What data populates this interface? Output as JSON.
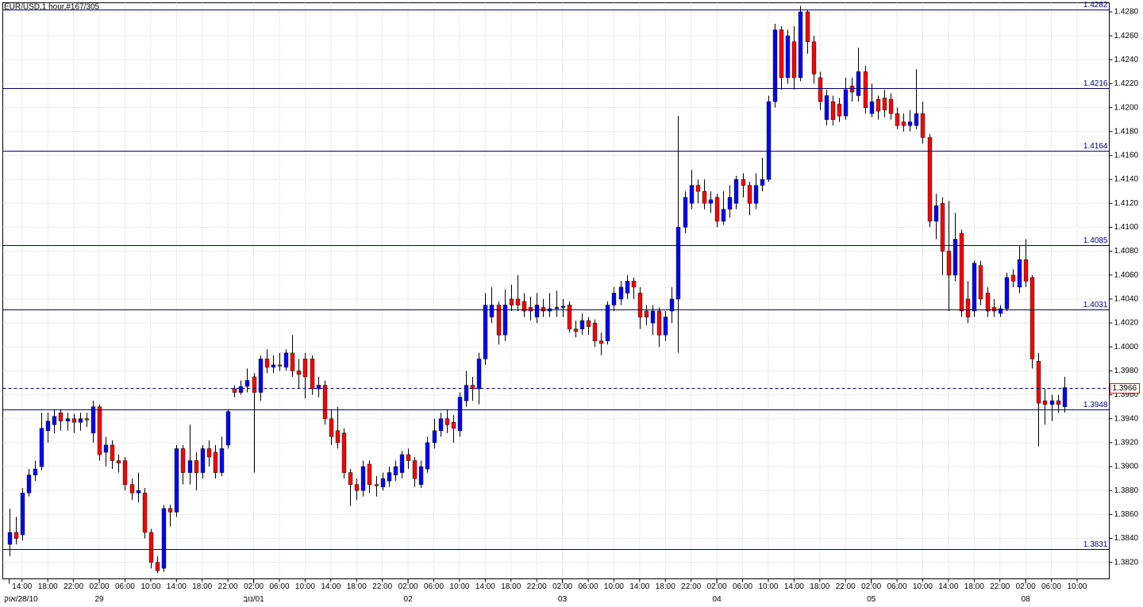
{
  "chart_data": {
    "type": "candlestick",
    "title": "EUR/USD,1 hour,#167/305",
    "up_color": "#0000ff",
    "down_color": "#ff0000",
    "level_color": "#000080",
    "grid": true,
    "ylim": [
      1.38062,
      1.42876
    ],
    "xlim": [
      -1,
      171
    ],
    "yticks": [
      {
        "value": 1.382,
        "label": "1.3820"
      },
      {
        "value": 1.384,
        "label": "1.3840"
      },
      {
        "value": 1.386,
        "label": "1.3860"
      },
      {
        "value": 1.388,
        "label": "1.3880"
      },
      {
        "value": 1.39,
        "label": "1.3900"
      },
      {
        "value": 1.392,
        "label": "1.3920"
      },
      {
        "value": 1.394,
        "label": "1.3940"
      },
      {
        "value": 1.396,
        "label": "1.3960"
      },
      {
        "value": 1.398,
        "label": "1.3980"
      },
      {
        "value": 1.4,
        "label": "1.4000"
      },
      {
        "value": 1.402,
        "label": "1.4020"
      },
      {
        "value": 1.404,
        "label": "1.4040"
      },
      {
        "value": 1.406,
        "label": "1.4060"
      },
      {
        "value": 1.408,
        "label": "1.4080"
      },
      {
        "value": 1.41,
        "label": "1.4100"
      },
      {
        "value": 1.412,
        "label": "1.4120"
      },
      {
        "value": 1.414,
        "label": "1.4140"
      },
      {
        "value": 1.416,
        "label": "1.4160"
      },
      {
        "value": 1.418,
        "label": "1.4180"
      },
      {
        "value": 1.42,
        "label": "1.4200"
      },
      {
        "value": 1.422,
        "label": "1.4220"
      },
      {
        "value": 1.424,
        "label": "1.4240"
      },
      {
        "value": 1.426,
        "label": "1.4260"
      },
      {
        "value": 1.428,
        "label": "1.4280"
      }
    ],
    "xticks": [
      {
        "value": 2,
        "label": "14:00"
      },
      {
        "value": 6,
        "label": "18:00"
      },
      {
        "value": 10,
        "label": "22:00"
      },
      {
        "value": 14,
        "label": "02:00"
      },
      {
        "value": 18,
        "label": "06:00"
      },
      {
        "value": 22,
        "label": "10:00"
      },
      {
        "value": 26,
        "label": "14:00"
      },
      {
        "value": 30,
        "label": "18:00"
      },
      {
        "value": 34,
        "label": "22:00"
      },
      {
        "value": 38,
        "label": "02:00"
      },
      {
        "value": 42,
        "label": "06:00"
      },
      {
        "value": 46,
        "label": "10:00"
      },
      {
        "value": 50,
        "label": "14:00"
      },
      {
        "value": 54,
        "label": "18:00"
      },
      {
        "value": 58,
        "label": "22:00"
      },
      {
        "value": 62,
        "label": "02:00"
      },
      {
        "value": 66,
        "label": "06:00"
      },
      {
        "value": 70,
        "label": "10:00"
      },
      {
        "value": 74,
        "label": "14:00"
      },
      {
        "value": 78,
        "label": "18:00"
      },
      {
        "value": 82,
        "label": "22:00"
      },
      {
        "value": 86,
        "label": "02:00"
      },
      {
        "value": 90,
        "label": "06:00"
      },
      {
        "value": 94,
        "label": "10:00"
      },
      {
        "value": 98,
        "label": "14:00"
      },
      {
        "value": 102,
        "label": "18:00"
      },
      {
        "value": 106,
        "label": "22:00"
      },
      {
        "value": 110,
        "label": "02:00"
      },
      {
        "value": 114,
        "label": "06:00"
      },
      {
        "value": 118,
        "label": "10:00"
      },
      {
        "value": 122,
        "label": "14:00"
      },
      {
        "value": 126,
        "label": "18:00"
      },
      {
        "value": 130,
        "label": "22:00"
      },
      {
        "value": 134,
        "label": "02:00"
      },
      {
        "value": 138,
        "label": "06:00"
      },
      {
        "value": 142,
        "label": "10:00"
      },
      {
        "value": 146,
        "label": "14:00"
      },
      {
        "value": 150,
        "label": "18:00"
      },
      {
        "value": 154,
        "label": "22:00"
      },
      {
        "value": 158,
        "label": "02:00"
      },
      {
        "value": 162,
        "label": "06:00"
      },
      {
        "value": 166,
        "label": "10:00"
      }
    ],
    "dates": [
      {
        "value": 0,
        "label": "28/10/אוק"
      },
      {
        "value": 14,
        "label": "29"
      },
      {
        "value": 38,
        "label": "01/נוב"
      },
      {
        "value": 62,
        "label": "02"
      },
      {
        "value": 86,
        "label": "03"
      },
      {
        "value": 110,
        "label": "04"
      },
      {
        "value": 134,
        "label": "05"
      },
      {
        "value": 158,
        "label": "08"
      }
    ],
    "levels": [
      1.4282,
      1.4216,
      1.4164,
      1.4085,
      1.4031,
      1.3948,
      1.3831
    ],
    "current_price": 1.3966,
    "ohlc": [
      [
        1.3835,
        1.3865,
        1.3825,
        1.3845
      ],
      [
        1.3845,
        1.3858,
        1.3835,
        1.384
      ],
      [
        1.3843,
        1.3882,
        1.3838,
        1.3878
      ],
      [
        1.3878,
        1.3898,
        1.3875,
        1.3893
      ],
      [
        1.3893,
        1.3905,
        1.3888,
        1.3898
      ],
      [
        1.39,
        1.3945,
        1.3897,
        1.3932
      ],
      [
        1.393,
        1.3945,
        1.392,
        1.3938
      ],
      [
        1.3935,
        1.3948,
        1.3928,
        1.3942
      ],
      [
        1.3945,
        1.3948,
        1.393,
        1.3938
      ],
      [
        1.3938,
        1.3945,
        1.393,
        1.394
      ],
      [
        1.394,
        1.3944,
        1.3928,
        1.3937
      ],
      [
        1.3937,
        1.3945,
        1.393,
        1.394
      ],
      [
        1.394,
        1.3945,
        1.3933,
        1.3939
      ],
      [
        1.3928,
        1.3955,
        1.392,
        1.395
      ],
      [
        1.395,
        1.3952,
        1.3905,
        1.391
      ],
      [
        1.3912,
        1.3925,
        1.39,
        1.3918
      ],
      [
        1.3918,
        1.3922,
        1.3898,
        1.3905
      ],
      [
        1.3905,
        1.391,
        1.3895,
        1.3903
      ],
      [
        1.3905,
        1.3908,
        1.388,
        1.3885
      ],
      [
        1.3885,
        1.389,
        1.3872,
        1.3878
      ],
      [
        1.3878,
        1.3895,
        1.387,
        1.388
      ],
      [
        1.3878,
        1.3882,
        1.384,
        1.3845
      ],
      [
        1.3845,
        1.3848,
        1.3815,
        1.382
      ],
      [
        1.382,
        1.3825,
        1.3811,
        1.3813
      ],
      [
        1.3815,
        1.3868,
        1.3812,
        1.3865
      ],
      [
        1.3865,
        1.3868,
        1.385,
        1.3862
      ],
      [
        1.3862,
        1.3918,
        1.3858,
        1.3915
      ],
      [
        1.3915,
        1.3918,
        1.3885,
        1.3895
      ],
      [
        1.3895,
        1.3935,
        1.3885,
        1.3905
      ],
      [
        1.3905,
        1.3912,
        1.388,
        1.3895
      ],
      [
        1.3895,
        1.3918,
        1.389,
        1.3915
      ],
      [
        1.3915,
        1.3922,
        1.39,
        1.3908
      ],
      [
        1.3912,
        1.3918,
        1.389,
        1.3895
      ],
      [
        1.3895,
        1.3925,
        1.3892,
        1.3915
      ],
      [
        1.3918,
        1.3948,
        1.3915,
        1.3946
      ],
      [
        1.3965,
        1.3968,
        1.3958,
        1.3962
      ],
      [
        1.3962,
        1.3972,
        1.396,
        1.3967
      ],
      [
        1.3967,
        1.3982,
        1.3962,
        1.3972
      ],
      [
        1.3975,
        1.3978,
        1.3895,
        1.3962
      ],
      [
        1.3962,
        1.3993,
        1.3955,
        1.399
      ],
      [
        1.399,
        1.3998,
        1.3978,
        1.3983
      ],
      [
        1.3983,
        1.3993,
        1.3978,
        1.3985
      ],
      [
        1.3985,
        1.3995,
        1.398,
        1.3984
      ],
      [
        1.3983,
        1.3998,
        1.398,
        1.3995
      ],
      [
        1.3995,
        1.401,
        1.3975,
        1.398
      ],
      [
        1.398,
        1.399,
        1.3965,
        1.3977
      ],
      [
        1.399,
        1.3995,
        1.3957,
        1.3975
      ],
      [
        1.399,
        1.3993,
        1.396,
        1.3965
      ],
      [
        1.3965,
        1.3975,
        1.3958,
        1.3968
      ],
      [
        1.3968,
        1.3972,
        1.3935,
        1.394
      ],
      [
        1.394,
        1.3948,
        1.3918,
        1.3925
      ],
      [
        1.393,
        1.395,
        1.3915,
        1.392
      ],
      [
        1.3928,
        1.3932,
        1.389,
        1.3895
      ],
      [
        1.3895,
        1.3898,
        1.3867,
        1.3885
      ],
      [
        1.3885,
        1.389,
        1.3872,
        1.388
      ],
      [
        1.388,
        1.3905,
        1.3875,
        1.39
      ],
      [
        1.3902,
        1.3905,
        1.3878,
        1.3885
      ],
      [
        1.3885,
        1.3892,
        1.3875,
        1.3884
      ],
      [
        1.3883,
        1.3895,
        1.388,
        1.389
      ],
      [
        1.3888,
        1.39,
        1.3883,
        1.3895
      ],
      [
        1.3893,
        1.3905,
        1.3888,
        1.39
      ],
      [
        1.3895,
        1.3913,
        1.389,
        1.391
      ],
      [
        1.391,
        1.3915,
        1.3898,
        1.3905
      ],
      [
        1.3905,
        1.3908,
        1.3883,
        1.389
      ],
      [
        1.3885,
        1.3905,
        1.3882,
        1.39
      ],
      [
        1.3898,
        1.3925,
        1.3895,
        1.392
      ],
      [
        1.392,
        1.394,
        1.3915,
        1.393
      ],
      [
        1.393,
        1.3945,
        1.3925,
        1.394
      ],
      [
        1.394,
        1.3948,
        1.3928,
        1.3935
      ],
      [
        1.3937,
        1.3943,
        1.392,
        1.3932
      ],
      [
        1.393,
        1.3962,
        1.3925,
        1.3958
      ],
      [
        1.3955,
        1.398,
        1.395,
        1.3968
      ],
      [
        1.3968,
        1.3975,
        1.3955,
        1.3965
      ],
      [
        1.3965,
        1.3995,
        1.3952,
        1.399
      ],
      [
        1.399,
        1.4045,
        1.3985,
        1.4035
      ],
      [
        1.4025,
        1.405,
        1.402,
        1.4035
      ],
      [
        1.4035,
        1.4038,
        1.4002,
        1.401
      ],
      [
        1.401,
        1.4048,
        1.4005,
        1.4035
      ],
      [
        1.404,
        1.4052,
        1.403,
        1.4035
      ],
      [
        1.404,
        1.406,
        1.403,
        1.4035
      ],
      [
        1.4038,
        1.4045,
        1.4025,
        1.403
      ],
      [
        1.4033,
        1.4042,
        1.4022,
        1.403
      ],
      [
        1.4025,
        1.4045,
        1.402,
        1.4035
      ],
      [
        1.4033,
        1.404,
        1.4025,
        1.403
      ],
      [
        1.403,
        1.4045,
        1.4025,
        1.4032
      ],
      [
        1.4032,
        1.4047,
        1.4025,
        1.4033
      ],
      [
        1.4033,
        1.404,
        1.4025,
        1.4034
      ],
      [
        1.4035,
        1.4038,
        1.4012,
        1.4015
      ],
      [
        1.4015,
        1.4022,
        1.4008,
        1.4013
      ],
      [
        1.4015,
        1.4028,
        1.401,
        1.4022
      ],
      [
        1.4022,
        1.4025,
        1.401,
        1.4017
      ],
      [
        1.402,
        1.4023,
        1.4,
        1.4005
      ],
      [
        1.4005,
        1.4012,
        1.3993,
        1.4003
      ],
      [
        1.4005,
        1.4038,
        1.4002,
        1.4035
      ],
      [
        1.4035,
        1.405,
        1.403,
        1.4045
      ],
      [
        1.404,
        1.4055,
        1.4035,
        1.405
      ],
      [
        1.4045,
        1.406,
        1.404,
        1.4055
      ],
      [
        1.4055,
        1.4058,
        1.404,
        1.405
      ],
      [
        1.4045,
        1.405,
        1.4015,
        1.4025
      ],
      [
        1.403,
        1.4035,
        1.4018,
        1.4025
      ],
      [
        1.402,
        1.4035,
        1.401,
        1.403
      ],
      [
        1.403,
        1.4033,
        1.4,
        1.401
      ],
      [
        1.401,
        1.403,
        1.4005,
        1.4025
      ],
      [
        1.403,
        1.405,
        1.402,
        1.404
      ],
      [
        1.404,
        1.4193,
        1.3995,
        1.41
      ],
      [
        1.41,
        1.413,
        1.4095,
        1.4125
      ],
      [
        1.412,
        1.4148,
        1.4115,
        1.4135
      ],
      [
        1.4135,
        1.414,
        1.412,
        1.413
      ],
      [
        1.413,
        1.414,
        1.4115,
        1.412
      ],
      [
        1.412,
        1.413,
        1.4112,
        1.4123
      ],
      [
        1.4125,
        1.4128,
        1.41,
        1.4105
      ],
      [
        1.4105,
        1.413,
        1.4102,
        1.4115
      ],
      [
        1.4115,
        1.4135,
        1.4108,
        1.4125
      ],
      [
        1.412,
        1.4143,
        1.4115,
        1.414
      ],
      [
        1.414,
        1.4145,
        1.4125,
        1.4135
      ],
      [
        1.4135,
        1.4138,
        1.411,
        1.412
      ],
      [
        1.412,
        1.4145,
        1.4115,
        1.4135
      ],
      [
        1.4135,
        1.4158,
        1.413,
        1.414
      ],
      [
        1.414,
        1.421,
        1.4138,
        1.4205
      ],
      [
        1.4205,
        1.427,
        1.42,
        1.4265
      ],
      [
        1.4265,
        1.4268,
        1.4215,
        1.4225
      ],
      [
        1.4225,
        1.4265,
        1.422,
        1.426
      ],
      [
        1.4255,
        1.4268,
        1.4215,
        1.4225
      ],
      [
        1.4225,
        1.4285,
        1.4222,
        1.428
      ],
      [
        1.428,
        1.4282,
        1.4245,
        1.4255
      ],
      [
        1.4255,
        1.426,
        1.422,
        1.4228
      ],
      [
        1.4225,
        1.423,
        1.4198,
        1.4205
      ],
      [
        1.419,
        1.4215,
        1.4185,
        1.421
      ],
      [
        1.4205,
        1.421,
        1.4185,
        1.419
      ],
      [
        1.4203,
        1.4208,
        1.4188,
        1.4193
      ],
      [
        1.4193,
        1.4225,
        1.419,
        1.4215
      ],
      [
        1.4218,
        1.4225,
        1.4205,
        1.4213
      ],
      [
        1.421,
        1.425,
        1.4205,
        1.423
      ],
      [
        1.423,
        1.4235,
        1.4195,
        1.42
      ],
      [
        1.4195,
        1.422,
        1.4192,
        1.4205
      ],
      [
        1.4207,
        1.421,
        1.419,
        1.4197
      ],
      [
        1.4208,
        1.4215,
        1.4192,
        1.4198
      ],
      [
        1.4207,
        1.4212,
        1.419,
        1.4195
      ],
      [
        1.4195,
        1.42,
        1.4182,
        1.4185
      ],
      [
        1.4188,
        1.4195,
        1.418,
        1.4185
      ],
      [
        1.4185,
        1.4198,
        1.418,
        1.4188
      ],
      [
        1.4185,
        1.4232,
        1.4182,
        1.4195
      ],
      [
        1.4195,
        1.4205,
        1.417,
        1.4175
      ],
      [
        1.4175,
        1.4178,
        1.41,
        1.4105
      ],
      [
        1.4105,
        1.4128,
        1.409,
        1.4118
      ],
      [
        1.412,
        1.4125,
        1.406,
        1.408
      ],
      [
        1.408,
        1.4122,
        1.403,
        1.406
      ],
      [
        1.406,
        1.4112,
        1.4055,
        1.409
      ],
      [
        1.4095,
        1.4098,
        1.4025,
        1.403
      ],
      [
        1.404,
        1.4055,
        1.402,
        1.4025
      ],
      [
        1.403,
        1.4072,
        1.4025,
        1.407
      ],
      [
        1.4068,
        1.4072,
        1.4035,
        1.404
      ],
      [
        1.4045,
        1.405,
        1.4025,
        1.403
      ],
      [
        1.4033,
        1.404,
        1.4025,
        1.403
      ],
      [
        1.4028,
        1.4035,
        1.4025,
        1.4032
      ],
      [
        1.4032,
        1.4062,
        1.403,
        1.4058
      ],
      [
        1.406,
        1.4065,
        1.405,
        1.4055
      ],
      [
        1.405,
        1.4085,
        1.4045,
        1.4073
      ],
      [
        1.4073,
        1.409,
        1.405,
        1.4055
      ],
      [
        1.4058,
        1.406,
        1.3982,
        1.399
      ],
      [
        1.3988,
        1.3995,
        1.3917,
        1.3953
      ],
      [
        1.3955,
        1.3965,
        1.3935,
        1.3952
      ],
      [
        1.3952,
        1.396,
        1.3938,
        1.3955
      ],
      [
        1.3955,
        1.396,
        1.3945,
        1.3952
      ],
      [
        1.395,
        1.3975,
        1.3945,
        1.3966
      ]
    ]
  }
}
